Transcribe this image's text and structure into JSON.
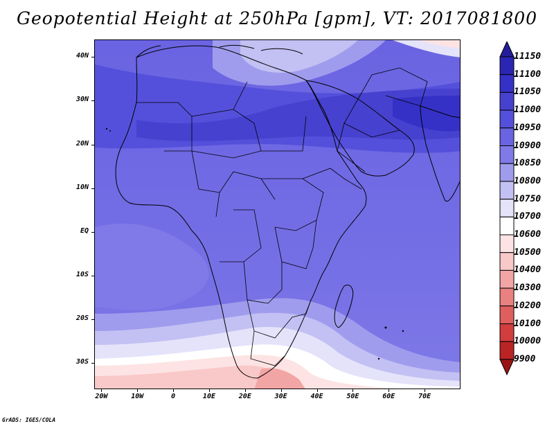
{
  "title": "Geopotential Height at 250hPa [gpm], VT: 2017081800",
  "footer": "GrADS: IGES/COLA",
  "lat_labels": [
    "40N",
    "30N",
    "20N",
    "10N",
    "EQ",
    "10S",
    "20S",
    "30S"
  ],
  "lon_labels": [
    "20W",
    "10W",
    "0",
    "10E",
    "20E",
    "30E",
    "40E",
    "50E",
    "60E",
    "70E"
  ],
  "colorbar": {
    "levels": [
      "11150",
      "11100",
      "11050",
      "11000",
      "10950",
      "10900",
      "10850",
      "10800",
      "10750",
      "10700",
      "10600",
      "10500",
      "10400",
      "10300",
      "10200",
      "10100",
      "10000",
      "9900"
    ],
    "colors": [
      "#241e9a",
      "#2b25b4",
      "#3531c6",
      "#4741cf",
      "#5550db",
      "#6a64e2",
      "#7f7ae7",
      "#a09ced",
      "#c3c0f3",
      "#e4e3fa",
      "#ffffff",
      "#fde3e3",
      "#f9c8c8",
      "#f2a5a5",
      "#e98181",
      "#df5f5f",
      "#d23d3d",
      "#bb2424",
      "#9a1414"
    ]
  },
  "map": {
    "lon_range": [
      -22,
      80
    ],
    "lat_range": [
      -36,
      44
    ],
    "land_outline": "Africa and Arabian Peninsula with country borders"
  }
}
